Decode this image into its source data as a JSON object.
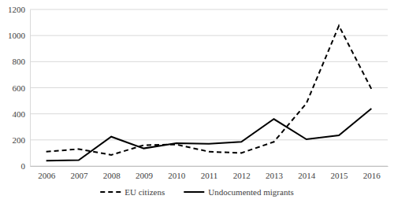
{
  "chart_data": {
    "type": "line",
    "categories": [
      "2006",
      "2007",
      "2008",
      "2009",
      "2010",
      "2011",
      "2012",
      "2013",
      "2014",
      "2015",
      "2016"
    ],
    "series": [
      {
        "name": "EU citizens",
        "color": "#000000",
        "line_style": "dashed",
        "values": [
          110,
          130,
          85,
          160,
          165,
          110,
          100,
          185,
          480,
          1075,
          590
        ]
      },
      {
        "name": "Undocumented migrants",
        "color": "#000000",
        "line_style": "solid",
        "values": [
          40,
          45,
          225,
          135,
          175,
          170,
          185,
          360,
          205,
          235,
          440
        ]
      }
    ],
    "ylim": [
      0,
      1200
    ],
    "yticks": [
      0,
      200,
      400,
      600,
      800,
      1000,
      1200
    ],
    "grid": true,
    "legend": "bottom"
  }
}
